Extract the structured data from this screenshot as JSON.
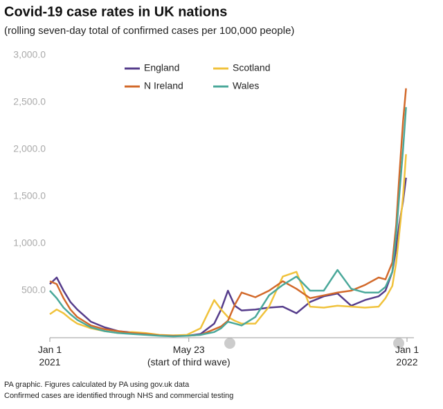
{
  "chart_data": {
    "type": "line",
    "title": "Covid-19 case rates in UK nations",
    "subtitle": "(rolling seven-day total of confirmed cases per 100,000 people)",
    "notes": [
      "PA graphic. Figures calculated by PA using gov.uk data",
      "Confirmed cases are identified through NHS and commercial testing"
    ],
    "x": [
      0,
      7,
      14,
      21,
      28,
      42,
      56,
      70,
      84,
      98,
      112,
      126,
      140,
      154,
      168,
      175,
      182,
      189,
      196,
      210,
      224,
      238,
      252,
      266,
      280,
      294,
      308,
      322,
      336,
      343,
      350,
      354,
      357,
      361,
      364
    ],
    "xlim": [
      0,
      365
    ],
    "xticks": [
      {
        "value": 0,
        "label": "Jan 1\n2021"
      },
      {
        "value": 142,
        "label": "May 23\n(start of third wave)"
      },
      {
        "value": 365,
        "label": "Jan 1\n2022"
      }
    ],
    "ylim": [
      0,
      3000
    ],
    "yticks": [
      {
        "value": 500,
        "label": "500.0"
      },
      {
        "value": 1000,
        "label": "1,000.0"
      },
      {
        "value": 1500,
        "label": "1,500.0"
      },
      {
        "value": 2000,
        "label": "2,000.0"
      },
      {
        "value": 2500,
        "label": "2,500.0"
      },
      {
        "value": 3000,
        "label": "3,000.0"
      }
    ],
    "grid": false,
    "legend": "top",
    "series": [
      {
        "name": "England",
        "color": "#553c8b",
        "values": [
          570,
          640,
          500,
          380,
          300,
          170,
          110,
          70,
          55,
          40,
          25,
          20,
          20,
          40,
          150,
          300,
          500,
          340,
          290,
          300,
          320,
          330,
          260,
          380,
          440,
          470,
          340,
          400,
          440,
          500,
          700,
          950,
          1200,
          1450,
          1700
        ]
      },
      {
        "name": "Scotland",
        "color": "#f0c23b",
        "values": [
          250,
          300,
          260,
          200,
          150,
          100,
          70,
          50,
          60,
          50,
          30,
          25,
          30,
          100,
          400,
          300,
          220,
          180,
          150,
          150,
          330,
          650,
          700,
          330,
          320,
          340,
          330,
          320,
          330,
          420,
          550,
          800,
          1100,
          1500,
          1950
        ]
      },
      {
        "name": "N Ireland",
        "color": "#d2692a",
        "values": [
          600,
          570,
          420,
          300,
          220,
          130,
          90,
          70,
          50,
          40,
          25,
          20,
          20,
          30,
          90,
          120,
          180,
          350,
          480,
          430,
          500,
          600,
          520,
          420,
          450,
          480,
          500,
          560,
          640,
          620,
          800,
          1200,
          1700,
          2300,
          2650
        ]
      },
      {
        "name": "Wales",
        "color": "#4aa89a",
        "values": [
          500,
          420,
          320,
          250,
          190,
          110,
          70,
          50,
          40,
          30,
          20,
          15,
          20,
          30,
          60,
          100,
          170,
          150,
          130,
          220,
          450,
          560,
          650,
          500,
          500,
          720,
          520,
          480,
          480,
          540,
          700,
          1100,
          1500,
          2000,
          2450
        ]
      }
    ]
  }
}
